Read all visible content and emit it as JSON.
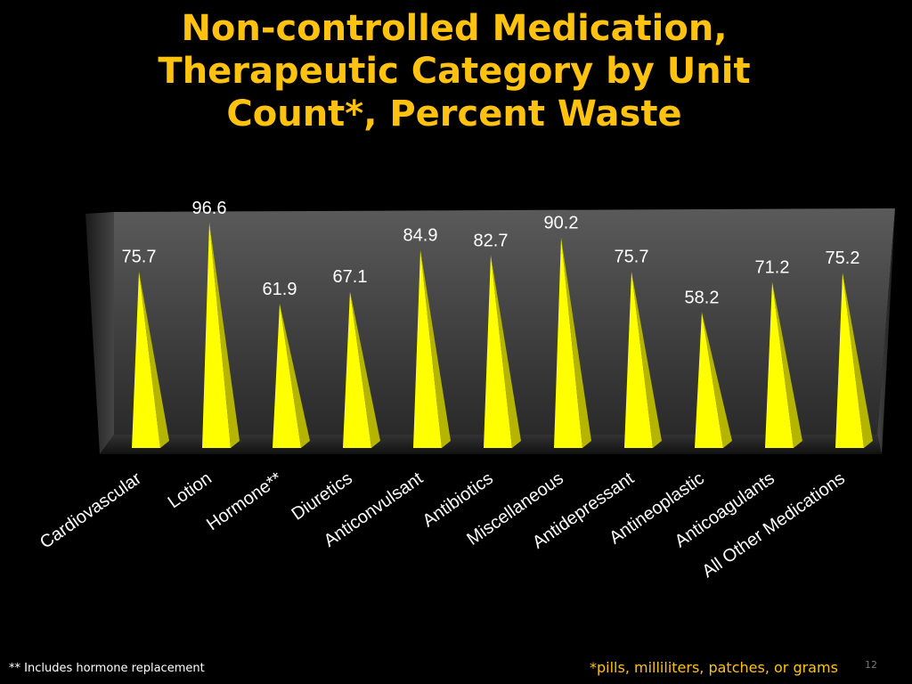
{
  "slide": {
    "title_lines": [
      "Non-controlled Medication,",
      "Therapeutic Category by Unit",
      "Count*, Percent Waste"
    ],
    "footnote_left": "** Includes hormone replacement",
    "footnote_right": "*pills, milliliters, patches, or grams",
    "slide_number": "12"
  },
  "chart_data": {
    "type": "bar",
    "title": "Non-controlled Medication, Therapeutic Category by Unit Count*, Percent Waste",
    "categories": [
      "Cardiovascular",
      "Lotion",
      "Hormone**",
      "Diuretics",
      "Anticonvulsant",
      "Antibiotics",
      "Miscellaneous",
      "Antidepressant",
      "Antineoplastic",
      "Anticoagulants",
      "All Other Medications"
    ],
    "values": [
      75.7,
      96.6,
      61.9,
      67.1,
      84.9,
      82.7,
      90.2,
      75.7,
      58.2,
      71.2,
      75.2
    ],
    "value_labels": [
      "75.7",
      "96.6",
      "61.9",
      "67.1",
      "84.9",
      "82.7",
      "90.2",
      "75.7",
      "58.2",
      "71.2",
      "75.2"
    ],
    "xlabel": "",
    "ylabel": "",
    "ylim": [
      0,
      100
    ],
    "grid": false,
    "legend": "none",
    "bar_color": "#FFFF00",
    "bar_shade_color": "#B5B500",
    "label_color": "#FFFFFF"
  }
}
